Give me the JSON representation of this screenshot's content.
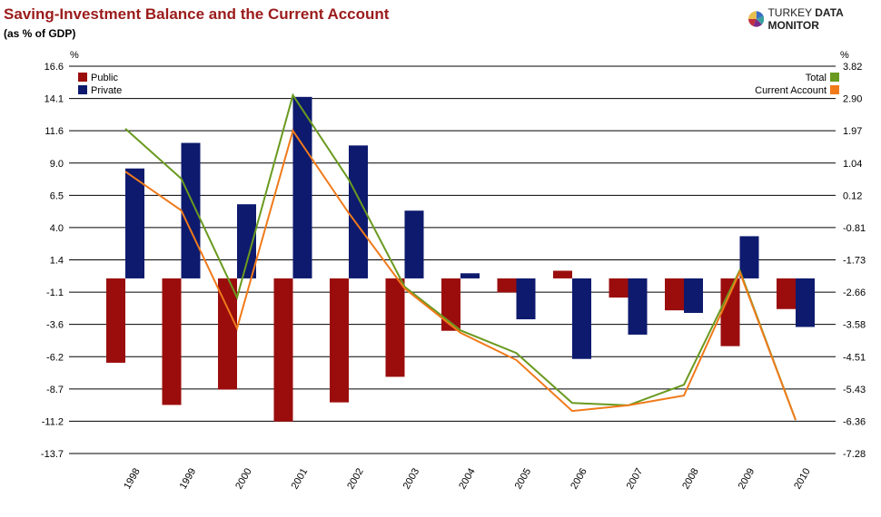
{
  "title": "Saving-Investment Balance and the Current Account",
  "subtitle": "(as % of GDP)",
  "logo": {
    "text_light": "TURKEY",
    "text_bold": "DATA MONITOR"
  },
  "chart_data": {
    "type": "bar+line",
    "categories": [
      "1998",
      "1999",
      "2000",
      "2001",
      "2002",
      "2003",
      "2004",
      "2005",
      "2006",
      "2007",
      "2008",
      "2009",
      "2010"
    ],
    "left_axis": {
      "label": "%",
      "ylim": [
        -13.7,
        16.6
      ],
      "ticks": [
        "16.6",
        "14.1",
        "11.6",
        "9.0",
        "6.5",
        "4.0",
        "1.4",
        "-1.1",
        "-3.6",
        "-6.2",
        "-8.7",
        "-11.2",
        "-13.7"
      ]
    },
    "right_axis": {
      "label": "%",
      "ylim": [
        -7.28,
        3.82
      ],
      "ticks": [
        "3.82",
        "2.90",
        "1.97",
        "1.04",
        "0.12",
        "-0.81",
        "-1.73",
        "-2.66",
        "-3.58",
        "-4.51",
        "-5.43",
        "-6.36",
        "-7.28"
      ]
    },
    "grid": true,
    "bar_series": [
      {
        "name": "Public",
        "color": "#9b0d0d",
        "axis": "left",
        "values": [
          -6.6,
          -9.9,
          -8.7,
          -11.2,
          -9.7,
          -7.7,
          -4.1,
          -1.1,
          0.6,
          -1.5,
          -2.5,
          -5.3,
          -2.4
        ]
      },
      {
        "name": "Private",
        "color": "#0d1a6e",
        "axis": "left",
        "values": [
          8.6,
          10.6,
          5.8,
          14.2,
          10.4,
          5.3,
          0.4,
          -3.2,
          -6.3,
          -4.4,
          -2.7,
          3.3,
          -3.8
        ]
      }
    ],
    "line_series": [
      {
        "name": "Total",
        "color": "#6a9a1f",
        "axis": "right",
        "values": [
          2.03,
          0.6,
          -2.81,
          2.99,
          0.57,
          -2.5,
          -3.75,
          -4.4,
          -5.83,
          -5.9,
          -5.31,
          -2.03,
          -6.32
        ]
      },
      {
        "name": "Current Account",
        "color": "#f07a1a",
        "axis": "right",
        "values": [
          0.8,
          -0.31,
          -3.69,
          1.97,
          -0.39,
          -2.55,
          -3.82,
          -4.6,
          -6.06,
          -5.9,
          -5.62,
          -2.08,
          -6.32
        ]
      }
    ],
    "legend": {
      "left": "top-left",
      "right": "top-right"
    }
  }
}
